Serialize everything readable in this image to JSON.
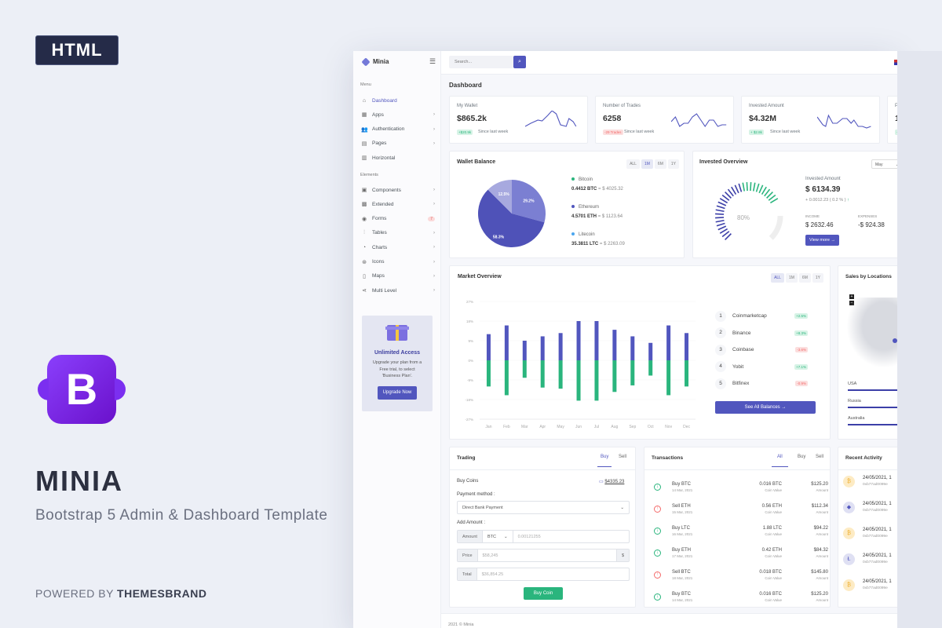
{
  "promo": {
    "badge": "HTML",
    "logo_letter": "B",
    "brand": "MINIA",
    "tagline": "Bootstrap 5 Admin & Dashboard Template",
    "powered_prefix": "POWERED BY ",
    "powered_by": "THEMESBRAND"
  },
  "app": {
    "name": "Minia",
    "search_placeholder": "Search...",
    "page_title": "Dashboard",
    "footer": "2021 © Minia"
  },
  "sidebar": {
    "menu_label": "Menu",
    "elements_label": "Elements",
    "menu": [
      {
        "label": "Dashboard",
        "icon": "home-icon",
        "active": true
      },
      {
        "label": "Apps",
        "icon": "grid-icon"
      },
      {
        "label": "Authentication",
        "icon": "users-icon"
      },
      {
        "label": "Pages",
        "icon": "file-icon"
      },
      {
        "label": "Horizontal",
        "icon": "layout-icon"
      }
    ],
    "elements": [
      {
        "label": "Components",
        "icon": "briefcase-icon"
      },
      {
        "label": "Extended",
        "icon": "gift-icon"
      },
      {
        "label": "Forms",
        "icon": "box-icon",
        "badge": "7"
      },
      {
        "label": "Tables",
        "icon": "sliders-icon"
      },
      {
        "label": "Charts",
        "icon": "pie-chart-icon"
      },
      {
        "label": "Icons",
        "icon": "cpu-icon"
      },
      {
        "label": "Maps",
        "icon": "map-icon"
      },
      {
        "label": "Multi Level",
        "icon": "share-icon"
      }
    ],
    "upgrade": {
      "title": "Unlimited Access",
      "text": "Upgrade your plan from a Free trial, to select 'Business Plan'.",
      "button": "Upgrade Now"
    }
  },
  "stats": [
    {
      "label": "My Wallet",
      "value": "$865.2k",
      "change": "+$20.9k",
      "trend": "up",
      "note": "Since last week"
    },
    {
      "label": "Number of Trades",
      "value": "6258",
      "change": "-29 Trades",
      "trend": "down",
      "note": "Since last week"
    },
    {
      "label": "Invested Amount",
      "value": "$4.32M",
      "change": "+ $2.8k",
      "trend": "up",
      "note": "Since last week"
    },
    {
      "label": "P",
      "value": "1",
      "change": "+",
      "trend": "up",
      "note": ""
    }
  ],
  "wallet": {
    "title": "Wallet Balance",
    "tabs": [
      "ALL",
      "1M",
      "6M",
      "1Y"
    ],
    "active_tab": "1M",
    "coins": [
      {
        "name": "Bitcoin",
        "amount": "0.4412 BTC",
        "value": "= $ 4025.32",
        "color": "#2ab57d",
        "share": 29.2,
        "share_label": "29.2%",
        "slice_color": "#7b7fd2"
      },
      {
        "name": "Ethereum",
        "amount": "4.5701 ETH",
        "value": "= $ 1123.64",
        "color": "#5156be",
        "share": 58.3,
        "share_label": "58.3%",
        "slice_color": "#4f52b8"
      },
      {
        "name": "Litecoin",
        "amount": "35.3811 LTC",
        "value": "= $ 2263.09",
        "color": "#4ba6ef",
        "share": 12.5,
        "share_label": "12.5%",
        "slice_color": "#a7a9df"
      }
    ]
  },
  "invested": {
    "title": "Invested Overview",
    "select": "May",
    "gauge_label": "80%",
    "gauge_value": 80,
    "amount_label": "Invested Amount",
    "amount": "$ 6134.39",
    "change": "+ 0.0012.23 ( 0.2 % )",
    "income_label": "INCOME",
    "income": "$ 2632.46",
    "expenses_label": "EXPENSES",
    "expenses": "-$ 924.38",
    "button": "View more"
  },
  "market": {
    "title": "Market Overview",
    "tabs": [
      "ALL",
      "1M",
      "6M",
      "1Y"
    ],
    "active_tab": "ALL",
    "exchanges": [
      {
        "rank": "1",
        "name": "Coinmarketcap",
        "change": "+2.5%",
        "trend": "up"
      },
      {
        "rank": "2",
        "name": "Binance",
        "change": "+8.3%",
        "trend": "up"
      },
      {
        "rank": "3",
        "name": "Coinbase",
        "change": "-3.6%",
        "trend": "down"
      },
      {
        "rank": "4",
        "name": "Yobit",
        "change": "+7.1%",
        "trend": "up"
      },
      {
        "rank": "5",
        "name": "Bitfinex",
        "change": "-0.9%",
        "trend": "down"
      }
    ],
    "button": "See All Balances"
  },
  "chart_data": {
    "type": "bar",
    "categories": [
      "Jan",
      "Feb",
      "Mar",
      "Apr",
      "May",
      "Jun",
      "Jul",
      "Aug",
      "Sep",
      "Oct",
      "Nov",
      "Dec"
    ],
    "series": [
      {
        "values": [
          12,
          16,
          9,
          11,
          12.5,
          18,
          18,
          14,
          11,
          8,
          16,
          12.5
        ],
        "color": "#5156be"
      },
      {
        "values": [
          -12,
          -16,
          -8,
          -12.5,
          -13,
          -18.5,
          -18.5,
          -14.5,
          -11.5,
          -7,
          -16,
          -12
        ],
        "color": "#2ab57d"
      }
    ],
    "ylim": [
      -27,
      27
    ],
    "yticks": [
      "27%",
      "18%",
      "9%",
      "0%",
      "-9%",
      "-18%",
      "-27%"
    ],
    "grid": true
  },
  "sales": {
    "title": "Sales by Locations",
    "zoom_in": "+",
    "zoom_out": "−",
    "countries": [
      "USA",
      "Russia",
      "Australia"
    ]
  },
  "trading": {
    "title": "Trading",
    "tabs": [
      "Buy",
      "Sell"
    ],
    "active_tab": "Buy",
    "buy_coins": "Buy Coins",
    "balance": "$4335.23",
    "payment_label": "Payment method :",
    "payment_value": "Direct Bank Payment",
    "amount_label": "Add Amount :",
    "amount_addon": "Amount",
    "coin": "BTC",
    "amount_placeholder": "0.00121255",
    "price_addon": "Price",
    "price_placeholder": "$58,245",
    "price_suffix": "$",
    "total_addon": "Total",
    "total_placeholder": "$36,854.25",
    "button": "Buy Coin"
  },
  "transactions": {
    "title": "Transactions",
    "tabs": [
      "All",
      "Buy",
      "Sell"
    ],
    "active_tab": "All",
    "coin_caption": "Coin Value",
    "amount_caption": "Amount",
    "rows": [
      {
        "type": "buy",
        "title": "Buy BTC",
        "date": "14 Mar, 2021",
        "coin": "0.016 BTC",
        "amount": "$125.20"
      },
      {
        "type": "sell",
        "title": "Sell ETH",
        "date": "15 Mar, 2021",
        "coin": "0.56 ETH",
        "amount": "$112.34"
      },
      {
        "type": "buy",
        "title": "Buy LTC",
        "date": "16 Mar, 2021",
        "coin": "1.88 LTC",
        "amount": "$94.22"
      },
      {
        "type": "buy",
        "title": "Buy ETH",
        "date": "17 Mar, 2021",
        "coin": "0.42 ETH",
        "amount": "$84.32"
      },
      {
        "type": "sell",
        "title": "Sell BTC",
        "date": "18 Mar, 2021",
        "coin": "0.018 BTC",
        "amount": "$145.80"
      },
      {
        "type": "buy",
        "title": "Buy BTC",
        "date": "14 Mar, 2021",
        "coin": "0.016 BTC",
        "amount": "$125.20"
      }
    ]
  },
  "activity": {
    "title": "Recent Activity",
    "rows": [
      {
        "coin": "bitcoin",
        "date": "24/05/2021, 1",
        "hash": "0xb77ad0099e"
      },
      {
        "coin": "ethereum",
        "date": "24/05/2021, 1",
        "hash": "0xb77ad0099e"
      },
      {
        "coin": "bitcoin",
        "date": "24/05/2021, 1",
        "hash": "0xb77ad0099e"
      },
      {
        "coin": "litecoin",
        "date": "24/05/2021, 1",
        "hash": "0xb77ad0099e"
      },
      {
        "coin": "bitcoin",
        "date": "24/05/2021, 1",
        "hash": "0xb77ad0099e"
      }
    ]
  }
}
